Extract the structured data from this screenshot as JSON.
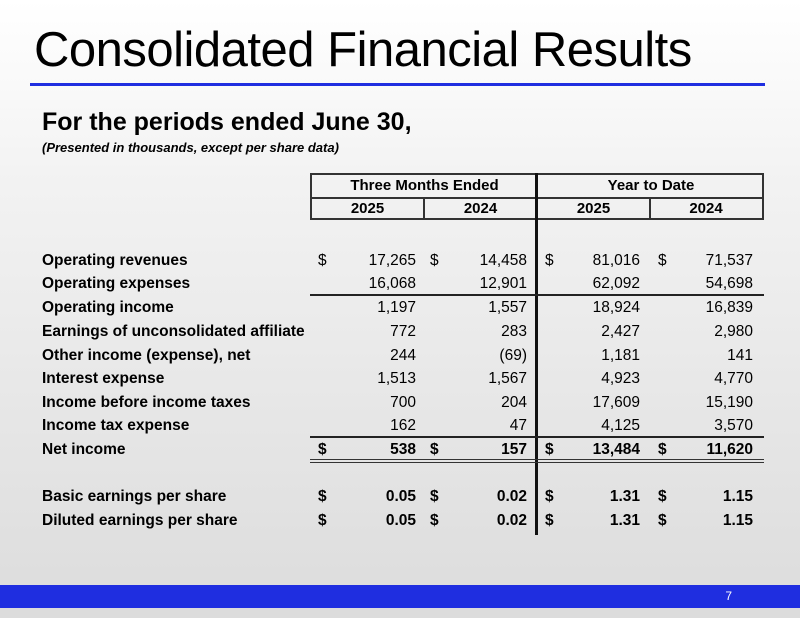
{
  "title": "Consolidated Financial Results",
  "subtitle": "For the periods ended June 30,",
  "note": "(Presented in thousands, except per share data)",
  "headers": {
    "group1": "Three Months Ended",
    "group2": "Year to Date",
    "years": [
      "2025",
      "2024",
      "2025",
      "2024"
    ]
  },
  "rows": [
    {
      "label": "Operating revenues",
      "dollar": true,
      "values": [
        "17,265",
        "14,458",
        "81,016",
        "71,537"
      ]
    },
    {
      "label": "Operating expenses",
      "values": [
        "16,068",
        "12,901",
        "62,092",
        "54,698"
      ]
    },
    {
      "label": "Operating income",
      "values": [
        "1,197",
        "1,557",
        "18,924",
        "16,839"
      ]
    },
    {
      "label": "Earnings of unconsolidated affiliate",
      "values": [
        "772",
        "283",
        "2,427",
        "2,980"
      ]
    },
    {
      "label": "Other income (expense), net",
      "values": [
        "244",
        "(69)",
        "1,181",
        "141"
      ]
    },
    {
      "label": "Interest expense",
      "values": [
        "1,513",
        "1,567",
        "4,923",
        "4,770"
      ]
    },
    {
      "label": "Income before income taxes",
      "values": [
        "700",
        "204",
        "17,609",
        "15,190"
      ]
    },
    {
      "label": "Income tax expense",
      "values": [
        "162",
        "47",
        "4,125",
        "3,570"
      ]
    },
    {
      "label": "Net income",
      "dollar": true,
      "bold": true,
      "values": [
        "538",
        "157",
        "13,484",
        "11,620"
      ]
    },
    {
      "label": "Basic earnings per share",
      "dollar": true,
      "bold": true,
      "values": [
        "0.05",
        "0.02",
        "1.31",
        "1.15"
      ]
    },
    {
      "label": "Diluted earnings per share",
      "dollar": true,
      "bold": true,
      "values": [
        "0.05",
        "0.02",
        "1.31",
        "1.15"
      ]
    }
  ],
  "currency_symbol": "$",
  "page_number": "7",
  "colors": {
    "accent": "#1f2ee0"
  }
}
